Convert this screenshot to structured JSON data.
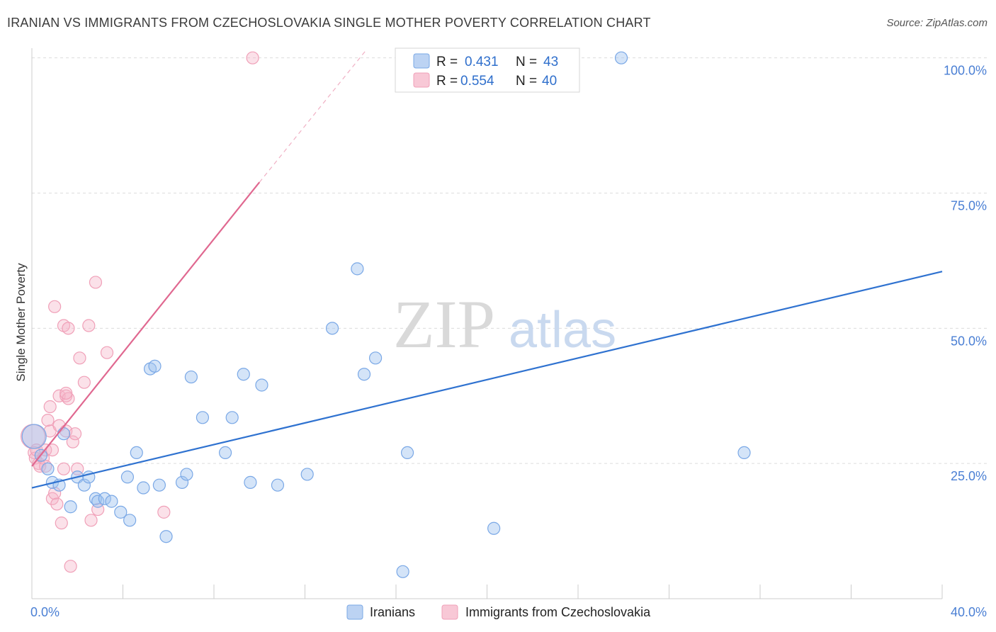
{
  "title": "IRANIAN VS IMMIGRANTS FROM CZECHOSLOVAKIA SINGLE MOTHER POVERTY CORRELATION CHART",
  "source": "Source: ZipAtlas.com",
  "watermark": {
    "zip": "ZIP",
    "atlas": "atlas"
  },
  "colors": {
    "blue": "#7aa8e6",
    "blue_line": "#2f72d0",
    "pink": "#f0a0b8",
    "pink_line": "#e06890"
  },
  "legend": {
    "r_label": "R =",
    "n_label": "N =",
    "series": [
      {
        "r": "0.431",
        "n": "43"
      },
      {
        "r": "0.554",
        "n": "40"
      }
    ]
  },
  "bottom_legend": [
    "Iranians",
    "Immigrants from Czechoslovakia"
  ],
  "chart_data": {
    "type": "scatter",
    "title": "IRANIAN VS IMMIGRANTS FROM CZECHOSLOVAKIA SINGLE MOTHER POVERTY CORRELATION CHART",
    "xlabel": "",
    "ylabel": "Single Mother Poverty",
    "xlim": [
      0,
      40
    ],
    "ylim": [
      0,
      100
    ],
    "x_ticks": [
      "0.0%",
      "40.0%"
    ],
    "y_ticks": [
      "25.0%",
      "50.0%",
      "75.0%",
      "100.0%"
    ],
    "y_tick_values": [
      25,
      50,
      75,
      100
    ],
    "grid": true,
    "series": [
      {
        "name": "Iranians",
        "color": "#7aa8e6",
        "points": [
          [
            0.1,
            30.0
          ],
          [
            0.4,
            26.5
          ],
          [
            0.7,
            24.0
          ],
          [
            0.9,
            21.5
          ],
          [
            1.2,
            21.0
          ],
          [
            1.4,
            30.5
          ],
          [
            1.7,
            17.0
          ],
          [
            2.0,
            22.5
          ],
          [
            2.3,
            21.0
          ],
          [
            2.5,
            22.5
          ],
          [
            2.8,
            18.5
          ],
          [
            2.9,
            18.0
          ],
          [
            3.2,
            18.5
          ],
          [
            3.5,
            18.0
          ],
          [
            3.9,
            16.0
          ],
          [
            4.2,
            22.5
          ],
          [
            4.3,
            14.5
          ],
          [
            4.6,
            27.0
          ],
          [
            4.9,
            20.5
          ],
          [
            5.2,
            42.5
          ],
          [
            5.4,
            43.0
          ],
          [
            5.6,
            21.0
          ],
          [
            5.9,
            11.5
          ],
          [
            6.6,
            21.5
          ],
          [
            6.8,
            23.0
          ],
          [
            7.0,
            41.0
          ],
          [
            7.5,
            33.5
          ],
          [
            8.5,
            27.0
          ],
          [
            8.8,
            33.5
          ],
          [
            9.3,
            41.5
          ],
          [
            9.6,
            21.5
          ],
          [
            10.1,
            39.5
          ],
          [
            10.8,
            21.0
          ],
          [
            12.1,
            23.0
          ],
          [
            13.2,
            50.0
          ],
          [
            14.3,
            61.0
          ],
          [
            14.6,
            41.5
          ],
          [
            15.1,
            44.5
          ],
          [
            16.3,
            5.0
          ],
          [
            16.5,
            27.0
          ],
          [
            20.3,
            13.0
          ],
          [
            25.9,
            100.0
          ],
          [
            31.3,
            27.0
          ]
        ]
      },
      {
        "name": "Immigrants from Czechoslovakia",
        "color": "#f0a0b8",
        "points": [
          [
            0.05,
            30.0
          ],
          [
            0.1,
            27.0
          ],
          [
            0.15,
            26.0
          ],
          [
            0.2,
            27.5
          ],
          [
            0.3,
            25.0
          ],
          [
            0.35,
            24.5
          ],
          [
            0.5,
            26.0
          ],
          [
            0.6,
            24.5
          ],
          [
            0.6,
            27.5
          ],
          [
            0.7,
            33.0
          ],
          [
            0.8,
            35.5
          ],
          [
            0.8,
            31.0
          ],
          [
            0.9,
            27.5
          ],
          [
            0.9,
            18.5
          ],
          [
            1.0,
            19.5
          ],
          [
            1.0,
            54.0
          ],
          [
            1.1,
            17.5
          ],
          [
            1.2,
            32.0
          ],
          [
            1.2,
            37.5
          ],
          [
            1.3,
            14.0
          ],
          [
            1.4,
            24.0
          ],
          [
            1.4,
            50.5
          ],
          [
            1.5,
            37.5
          ],
          [
            1.5,
            31.0
          ],
          [
            1.6,
            50.0
          ],
          [
            1.6,
            37.0
          ],
          [
            1.7,
            6.0
          ],
          [
            1.8,
            29.0
          ],
          [
            1.9,
            30.5
          ],
          [
            2.1,
            44.5
          ],
          [
            2.3,
            40.0
          ],
          [
            2.5,
            50.5
          ],
          [
            2.6,
            14.5
          ],
          [
            2.8,
            58.5
          ],
          [
            2.9,
            16.5
          ],
          [
            3.3,
            45.5
          ],
          [
            5.8,
            16.0
          ],
          [
            9.7,
            100.0
          ],
          [
            1.5,
            38.0
          ],
          [
            2.0,
            24.0
          ]
        ]
      }
    ],
    "trend_lines": [
      {
        "series": "Iranians",
        "x": [
          0,
          40
        ],
        "y": [
          20.5,
          60.5
        ]
      },
      {
        "series": "Immigrants from Czechoslovakia",
        "x": [
          0,
          10
        ],
        "y": [
          24.5,
          77.0
        ],
        "dashed_extension": {
          "x": [
            10,
            14.7
          ],
          "y": [
            77.0,
            101.5
          ]
        }
      }
    ]
  }
}
